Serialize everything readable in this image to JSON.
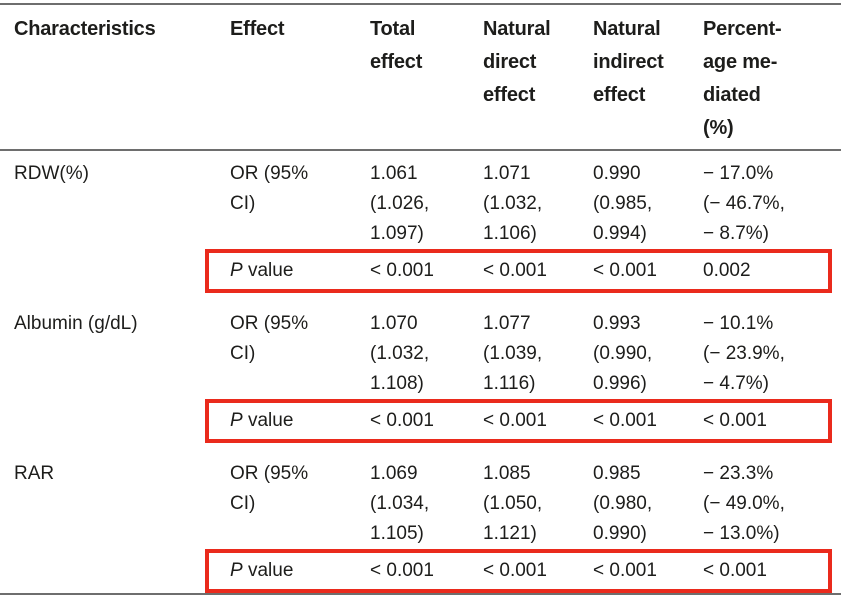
{
  "colors": {
    "highlight": "#ea2a1c",
    "rule": "#6e6e6e",
    "text": "#1d1d1b"
  },
  "table": {
    "headers": [
      "Characteristics",
      "Effect",
      "Total\neffect",
      "Natural\ndirect\neffect",
      "Natural\nindirect\neffect",
      "Percent-\nage me-\ndiated\n(%)"
    ],
    "p_label": {
      "italic": "P",
      "rest": " value"
    },
    "groups": [
      {
        "characteristic": "RDW(%)",
        "effect_label": "OR (95%\nCI)",
        "total": "1.061\n(1.026,\n1.097)",
        "direct": "1.071\n(1.032,\n1.106)",
        "indirect": "0.990\n(0.985,\n0.994)",
        "pct": "− 17.0%\n(− 46.7%,\n− 8.7%)",
        "p_total": "< 0.001",
        "p_direct": "< 0.001",
        "p_indirect": "< 0.001",
        "p_pct": "0.002"
      },
      {
        "characteristic": "Albumin (g/dL)",
        "effect_label": "OR (95%\nCI)",
        "total": "1.070\n(1.032,\n1.108)",
        "direct": "1.077\n(1.039,\n1.116)",
        "indirect": "0.993\n(0.990,\n0.996)",
        "pct": "− 10.1%\n(− 23.9%,\n− 4.7%)",
        "p_total": "< 0.001",
        "p_direct": "< 0.001",
        "p_indirect": "< 0.001",
        "p_pct": "< 0.001"
      },
      {
        "characteristic": "RAR",
        "effect_label": "OR (95%\nCI)",
        "total": "1.069\n(1.034,\n1.105)",
        "direct": "1.085\n(1.050,\n1.121)",
        "indirect": "0.985\n(0.980,\n0.990)",
        "pct": "− 23.3%\n(− 49.0%,\n− 13.0%)",
        "p_total": "< 0.001",
        "p_direct": "< 0.001",
        "p_indirect": "< 0.001",
        "p_pct": "< 0.001"
      }
    ]
  }
}
